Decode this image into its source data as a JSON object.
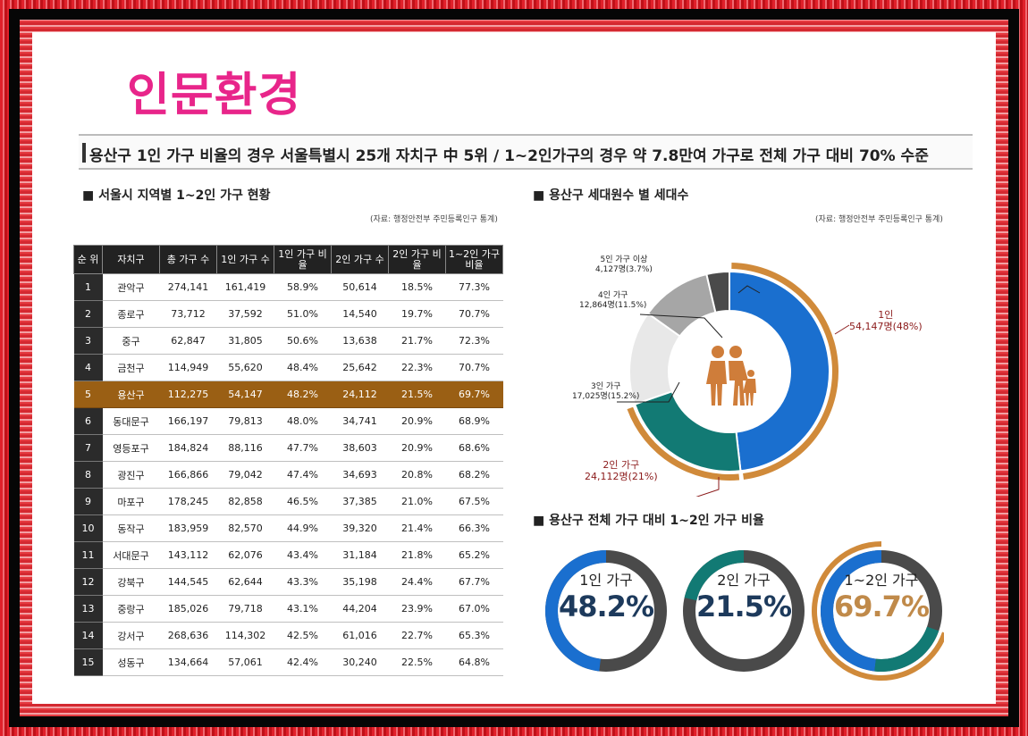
{
  "title": "인문환경",
  "headline": "용산구 1인 가구 비율의 경우 서울특별시 25개 자치구 中 5위 / 1~2인가구의 경우 약 7.8만여 가구로 전체 가구 대비 70% 수준",
  "colors": {
    "title_pink": "#e8258a",
    "highlight_row": "#9a5f14",
    "blue": "#1a6fcf",
    "teal": "#127a74",
    "orange": "#d08a3a",
    "dark_gray": "#4a4a4a"
  },
  "table_section": {
    "title": "■ 서울시 지역별 1~2인 가구 현황",
    "source": "(자료: 행정안전부 주민등록인구 통계)",
    "headers": [
      "순 위",
      "자치구",
      "총 가구 수",
      "1인 가구 수",
      "1인 가구 비율",
      "2인 가구 수",
      "2인 가구 비율",
      "1~2인 가구 비율"
    ],
    "rows": [
      [
        "1",
        "관악구",
        "274,141",
        "161,419",
        "58.9%",
        "50,614",
        "18.5%",
        "77.3%"
      ],
      [
        "2",
        "종로구",
        "73,712",
        "37,592",
        "51.0%",
        "14,540",
        "19.7%",
        "70.7%"
      ],
      [
        "3",
        "중구",
        "62,847",
        "31,805",
        "50.6%",
        "13,638",
        "21.7%",
        "72.3%"
      ],
      [
        "4",
        "금천구",
        "114,949",
        "55,620",
        "48.4%",
        "25,642",
        "22.3%",
        "70.7%"
      ],
      [
        "5",
        "용산구",
        "112,275",
        "54,147",
        "48.2%",
        "24,112",
        "21.5%",
        "69.7%"
      ],
      [
        "6",
        "동대문구",
        "166,197",
        "79,813",
        "48.0%",
        "34,741",
        "20.9%",
        "68.9%"
      ],
      [
        "7",
        "영등포구",
        "184,824",
        "88,116",
        "47.7%",
        "38,603",
        "20.9%",
        "68.6%"
      ],
      [
        "8",
        "광진구",
        "166,866",
        "79,042",
        "47.4%",
        "34,693",
        "20.8%",
        "68.2%"
      ],
      [
        "9",
        "마포구",
        "178,245",
        "82,858",
        "46.5%",
        "37,385",
        "21.0%",
        "67.5%"
      ],
      [
        "10",
        "동작구",
        "183,959",
        "82,570",
        "44.9%",
        "39,320",
        "21.4%",
        "66.3%"
      ],
      [
        "11",
        "서대문구",
        "143,112",
        "62,076",
        "43.4%",
        "31,184",
        "21.8%",
        "65.2%"
      ],
      [
        "12",
        "강북구",
        "144,545",
        "62,644",
        "43.3%",
        "35,198",
        "24.4%",
        "67.7%"
      ],
      [
        "13",
        "중랑구",
        "185,026",
        "79,718",
        "43.1%",
        "44,204",
        "23.9%",
        "67.0%"
      ],
      [
        "14",
        "강서구",
        "268,636",
        "114,302",
        "42.5%",
        "61,016",
        "22.7%",
        "65.3%"
      ],
      [
        "15",
        "성동구",
        "134,664",
        "57,061",
        "42.4%",
        "30,240",
        "22.5%",
        "64.8%"
      ]
    ],
    "highlight_rank": "5"
  },
  "donut_section": {
    "title": "■ 용산구 세대원수 별 세대수",
    "source": "(자료: 행정안전부 주민등록인구 통계)",
    "icon": "family-icon"
  },
  "ratio_section": {
    "title": "■ 용산구 전체 가구 대비 1~2인 가구 비율"
  },
  "chart_data": [
    {
      "type": "pie",
      "categories": [
        "1인",
        "2인 가구",
        "3인 가구",
        "4인 가구",
        "5인 가구 이상"
      ],
      "values": [
        54147,
        24112,
        17025,
        12864,
        4127
      ],
      "percent": [
        48,
        21,
        15.2,
        11.5,
        3.7
      ],
      "labels": [
        "54,147명(48%)",
        "24,112명(21%)",
        "17,025명(15.2%)",
        "12,864명(11.5%)",
        "4,127명(3.7%)"
      ],
      "colors": [
        "#1a6fcf",
        "#127a74",
        "#e8e8e8",
        "#a6a6a6",
        "#4a4a4a"
      ]
    },
    {
      "type": "pie",
      "categories": [
        "1인 가구",
        "2인 가구",
        "1~2인 가구"
      ],
      "values": [
        48.2,
        21.5,
        69.7
      ],
      "labels": [
        "48.2%",
        "21.5%",
        "69.7%"
      ]
    }
  ]
}
